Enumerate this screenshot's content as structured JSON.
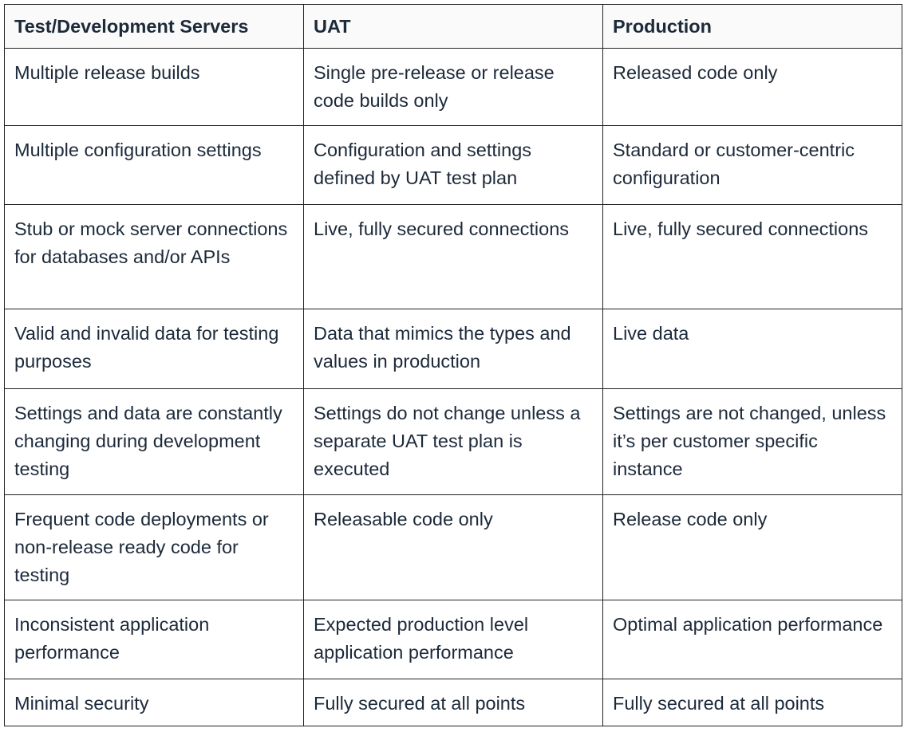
{
  "table": {
    "header": [
      "Test/Development Servers",
      "UAT",
      "Production"
    ],
    "rows": [
      [
        "Multiple release builds",
        "Single pre-release or release code builds only",
        "Released code only"
      ],
      [
        "Multiple configuration settings",
        "Configuration and settings defined by UAT test plan",
        "Standard or customer-centric configuration"
      ],
      [
        "Stub or mock server connections for databases and/or APIs",
        "Live, fully secured connections",
        "Live, fully secured connections"
      ],
      [
        "Valid and invalid data for testing purposes",
        "Data that mimics the types and values in production",
        "Live data"
      ],
      [
        "Settings and data are constantly changing during development testing",
        "Settings do not change unless a separate UAT test plan is executed",
        "Settings are not changed, unless it’s per customer specific instance"
      ],
      [
        "Frequent code deployments or non-release ready code for testing",
        "Releasable code only",
        "Release code only"
      ],
      [
        "Inconsistent application performance",
        "Expected production level application performance",
        "Optimal application performance"
      ],
      [
        "Minimal security",
        "Fully secured at all points",
        "Fully secured at all points"
      ]
    ]
  }
}
